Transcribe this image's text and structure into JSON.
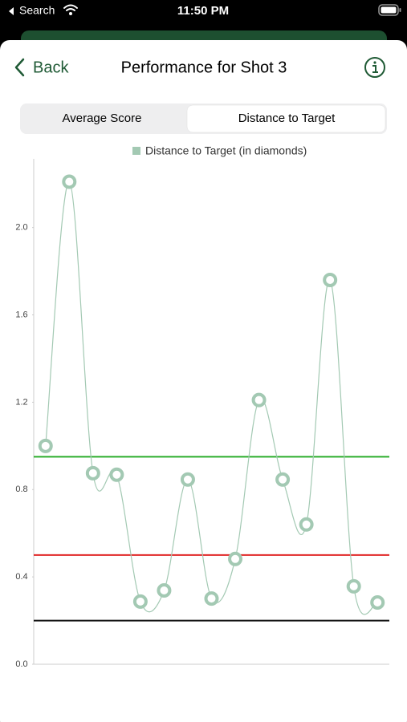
{
  "status_bar": {
    "back_app": "Search",
    "time": "11:50 PM"
  },
  "nav": {
    "back": "Back",
    "title": "Performance for Shot 3"
  },
  "segments": [
    "Average Score",
    "Distance to Target"
  ],
  "chart_data": {
    "type": "line",
    "series": [
      {
        "name": "Distance to Target (in diamonds)",
        "color": "#a3c9b3",
        "values": [
          1.0,
          2.21,
          0.875,
          0.868,
          0.287,
          0.338,
          0.846,
          0.301,
          0.482,
          1.21,
          0.846,
          0.64,
          1.76,
          0.357,
          0.283
        ]
      }
    ],
    "ylim": [
      0,
      2.3
    ],
    "yticks": [
      {
        "value": 0,
        "label": "0.0"
      },
      0.4,
      0.8,
      1.2,
      1.6,
      {
        "value": 2,
        "label": "2.0"
      }
    ],
    "reference_lines": [
      {
        "value": 0.95,
        "color": "#2aad2a"
      },
      {
        "value": 0.5,
        "color": "#e02424"
      },
      {
        "value": 0.2,
        "color": "#111111"
      }
    ]
  }
}
